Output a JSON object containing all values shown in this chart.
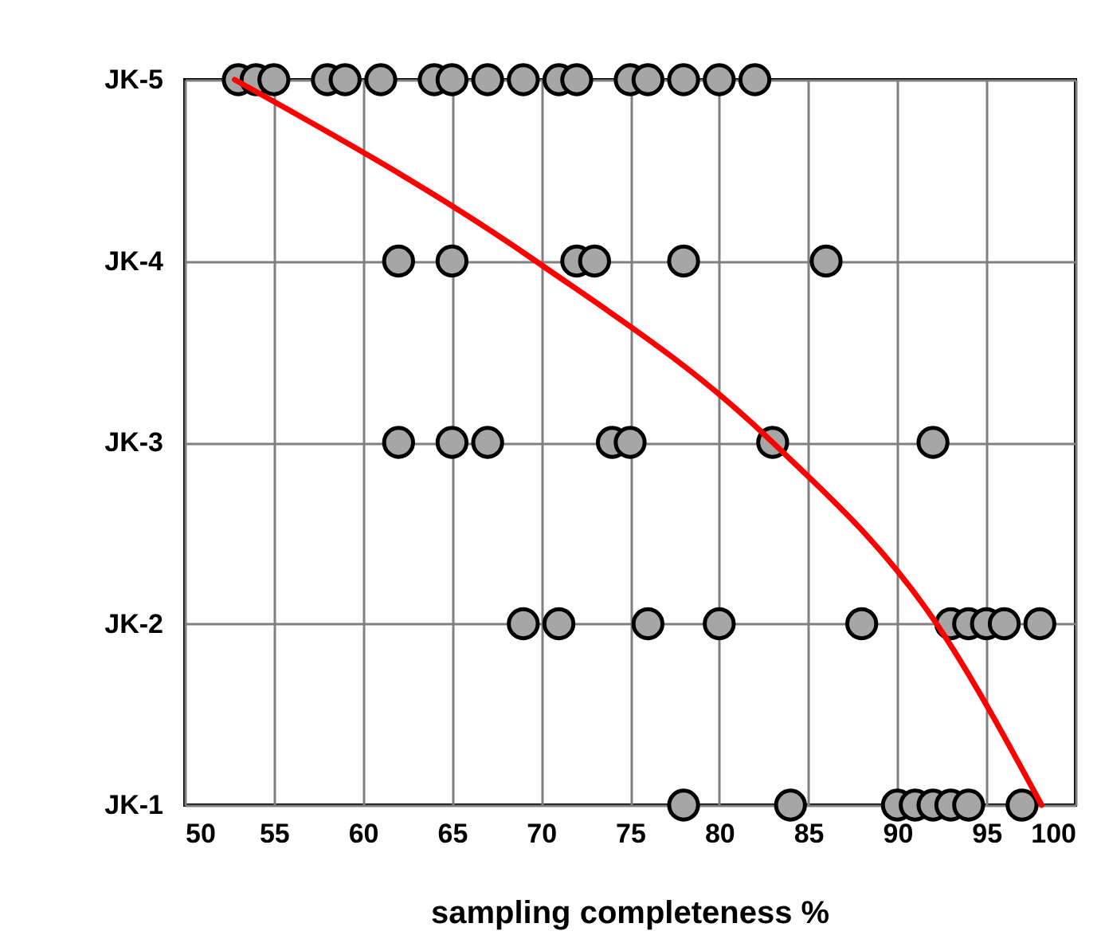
{
  "chart_data": {
    "type": "scatter",
    "orientation": "horizontal",
    "xlabel": "sampling completeness %",
    "categories": [
      "JK-5",
      "JK-4",
      "JK-3",
      "JK-2",
      "JK-1"
    ],
    "xlim": [
      50,
      100
    ],
    "xticks": [
      50,
      55,
      60,
      65,
      70,
      75,
      80,
      85,
      90,
      95,
      100
    ],
    "grid": true,
    "marker": "circle",
    "series": [
      {
        "color": "#a6a6a6",
        "x": [
          "JK-5",
          "JK-5",
          "JK-5",
          "JK-5",
          "JK-5",
          "JK-5",
          "JK-5",
          "JK-5",
          "JK-5",
          "JK-5",
          "JK-5",
          "JK-5",
          "JK-5",
          "JK-5",
          "JK-5",
          "JK-5",
          "JK-5",
          "JK-4",
          "JK-4",
          "JK-4",
          "JK-4",
          "JK-4",
          "JK-4",
          "JK-3",
          "JK-3",
          "JK-3",
          "JK-3",
          "JK-3",
          "JK-3",
          "JK-3",
          "JK-2",
          "JK-2",
          "JK-2",
          "JK-2",
          "JK-2",
          "JK-2",
          "JK-2",
          "JK-2",
          "JK-2",
          "JK-2",
          "JK-1",
          "JK-1",
          "JK-1",
          "JK-1",
          "JK-1",
          "JK-1",
          "JK-1",
          "JK-1"
        ],
        "values": [
          53,
          54,
          55,
          58,
          59,
          61,
          64,
          65,
          67,
          69,
          71,
          72,
          75,
          76,
          78,
          80,
          82,
          62,
          65,
          72,
          73,
          78,
          86,
          62,
          65,
          67,
          74,
          75,
          83,
          92,
          69,
          71,
          76,
          80,
          88,
          93,
          94,
          95,
          96,
          98,
          78,
          84,
          90,
          91,
          92,
          93,
          94,
          97
        ]
      },
      {
        "type": "line",
        "color": "#ff0000",
        "marker": "none",
        "x": [
          "JK-5",
          "JK-4",
          "JK-3",
          "JK-2",
          "JK-1"
        ],
        "values": [
          52.8,
          69.7,
          83,
          92.2,
          98.1
        ]
      }
    ]
  }
}
